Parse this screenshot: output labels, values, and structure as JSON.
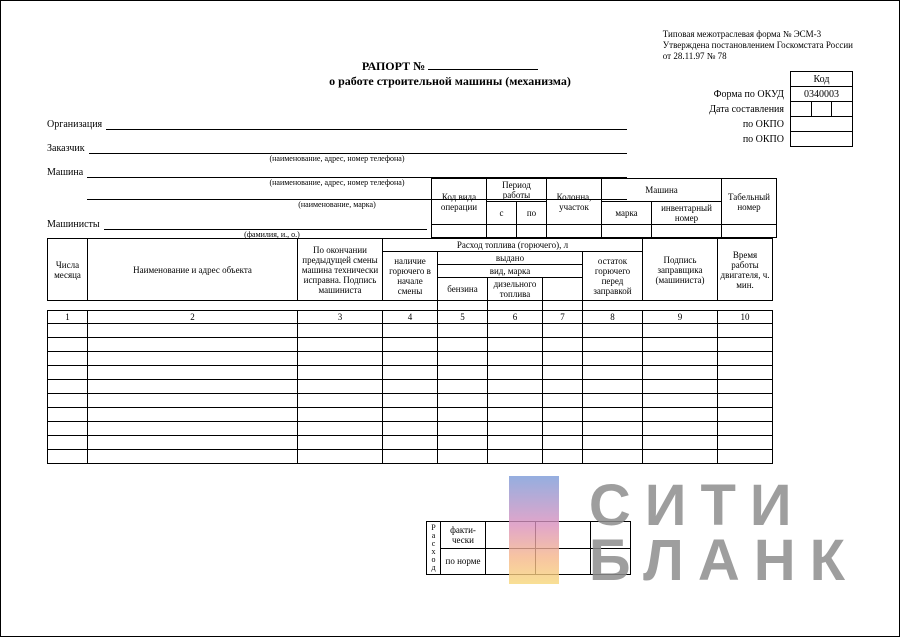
{
  "meta": {
    "form_line1": "Типовая межотраслевая форма № ЭСМ-3",
    "form_line2": "Утверждена постановлением Госкомстата России",
    "form_line3": "от 28.11.97 № 78"
  },
  "title": {
    "raport": "РАПОРТ №",
    "sub": "о работе строительной машины (механизма)"
  },
  "code_box": {
    "kod": "Код",
    "okud_label": "Форма по ОКУД",
    "okud_value": "0340003",
    "date_label": "Дата составления",
    "okpo1_label": "по ОКПО",
    "okpo2_label": "по ОКПО"
  },
  "fields": {
    "org": "Организация",
    "customer": "Заказчик",
    "customer_sub": "(наименование, адрес, номер телефона)",
    "machine": "Машина",
    "machine_sub_addr": "(наименование, адрес, номер телефона)",
    "machine_sub_mark": "(наименование, марка)",
    "machinists": "Машинисты",
    "machinists_sub": "(фамилия, и., о.)"
  },
  "mid_table": {
    "h_op": "Код вида операции",
    "h_period": "Период работы",
    "h_s": "с",
    "h_po": "по",
    "h_col": "Колонна, участок",
    "h_machine": "Машина",
    "h_mark": "марка",
    "h_inv": "инвентарный номер",
    "h_tab": "Табельный номер"
  },
  "main": {
    "h1": "Числа месяца",
    "h2": "Наименование и адрес объекта",
    "h3": "По окончании предыдущей смены машина технически исправна. Подпись машиниста",
    "h4": "наличие горючего в начале смены",
    "h_fuel": "Расход топлива (горючего), л",
    "h_issued": "выдано",
    "h_type": "вид, марка",
    "h5": "бензина",
    "h6": "дизельного топлива",
    "h8": "остаток горючего перед заправкой",
    "h9": "Подпись заправщика (машиниста)",
    "h10": "Время работы двигателя, ч. мин.",
    "nums": [
      "1",
      "2",
      "3",
      "4",
      "5",
      "6",
      "7",
      "8",
      "9",
      "10"
    ],
    "data_rows": 10
  },
  "rashod": {
    "vert": "Расход",
    "fact": "факти-чески",
    "norm": "по норме"
  },
  "watermark": {
    "l1": "СИТИ",
    "l2": "БЛАНК",
    "grad_colors": [
      "#7a9ad8",
      "#d98fbd",
      "#f5b58a",
      "#f7d77a"
    ]
  },
  "colors": {
    "line": "#000000",
    "bg": "#ffffff",
    "wm_text": "#8e8e8e"
  }
}
